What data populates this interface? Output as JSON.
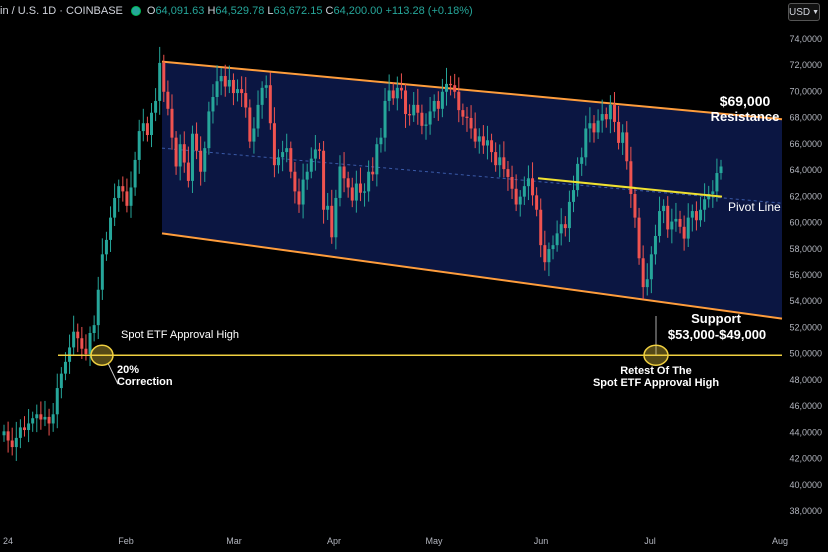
{
  "header": {
    "symbol": "in / U.S. 1D · COINBASE",
    "open_label": "O",
    "open": "64,091.63",
    "high_label": "H",
    "high": "64,529.78",
    "low_label": "L",
    "low": "63,672.15",
    "close_label": "C",
    "close": "64,200.00",
    "change": "+113.28 (+0.18%)",
    "currency": "USD"
  },
  "chart_data": {
    "type": "candlestick",
    "x_ticks": [
      "24",
      "Feb",
      "Mar",
      "Apr",
      "May",
      "Jun",
      "Jul",
      "Aug"
    ],
    "y_ticks": [
      "74,0000",
      "72,0000",
      "70,0000",
      "68,0000",
      "66,0000",
      "64,0000",
      "62,0000",
      "60,0000",
      "58,0000",
      "56,0000",
      "54,0000",
      "52,0000",
      "50,0000",
      "48,0000",
      "46,0000",
      "44,0000",
      "42,0000",
      "40,0000",
      "38,0000"
    ],
    "ylim": [
      37000,
      75500
    ],
    "closes": [
      44000,
      43300,
      42800,
      43500,
      44300,
      44100,
      44600,
      45000,
      45300,
      44900,
      45100,
      44600,
      45300,
      47300,
      48400,
      49300,
      50400,
      51600,
      51100,
      50300,
      49900,
      51500,
      52100,
      54800,
      57500,
      58600,
      60300,
      61800,
      62700,
      62300,
      61200,
      62600,
      64700,
      66900,
      67500,
      66600,
      68300,
      69200,
      72100,
      69900,
      68600,
      66400,
      64200,
      65900,
      64500,
      63100,
      66700,
      65400,
      63800,
      65600,
      68400,
      69500,
      70700,
      71100,
      70300,
      70800,
      69800,
      70100,
      69800,
      68700,
      66100,
      67100,
      68900,
      70200,
      70400,
      67500,
      64300,
      64900,
      65300,
      65600,
      63800,
      62300,
      61300,
      63200,
      63800,
      64800,
      65500,
      65400,
      60900,
      61200,
      58800,
      61800,
      64200,
      63300,
      62600,
      61600,
      62900,
      62200,
      62300,
      63800,
      63600,
      65900,
      66400,
      69200,
      70000,
      69400,
      70200,
      70000,
      68200,
      68100,
      68900,
      68300,
      67300,
      67400,
      68400,
      69200,
      68600,
      69900,
      70500,
      70400,
      69900,
      68500,
      68000,
      67900,
      67100,
      66100,
      66500,
      65800,
      66200,
      65300,
      64300,
      64900,
      64000,
      63400,
      62500,
      61300,
      61900,
      62700,
      63300,
      62000,
      60900,
      58200,
      56900,
      57900,
      58200,
      59100,
      59800,
      59500,
      61500,
      62400,
      64400,
      64900,
      67100,
      67500,
      66800,
      67700,
      68200,
      67800,
      68900,
      67600,
      66000,
      66800,
      64600,
      62100,
      60300,
      57200,
      55000,
      55600,
      57500,
      58900,
      60800,
      61200,
      59400,
      60000,
      60200,
      59600,
      58700,
      60300,
      60800,
      60100,
      60900,
      61700,
      62100,
      62300,
      63700,
      64200
    ],
    "annotations": {
      "resistance_value": "$69,000",
      "resistance_label": "Resistance",
      "pivot_label": "Pivot Line",
      "support_label": "Support",
      "support_range": "$53,000-$49,000",
      "etf_label": "Spot ETF Approval High",
      "correction_pct": "20%",
      "correction_label": "Correction",
      "retest_line1": "Retest Of The",
      "retest_line2": "Spot ETF Approval High"
    },
    "colors": {
      "up": "#26a69a",
      "down": "#ef5350",
      "channel": "#ff9d3c",
      "channel_fill": "#0d1a4d",
      "pivot": "#f0e130",
      "etf": "#f0d040"
    }
  }
}
